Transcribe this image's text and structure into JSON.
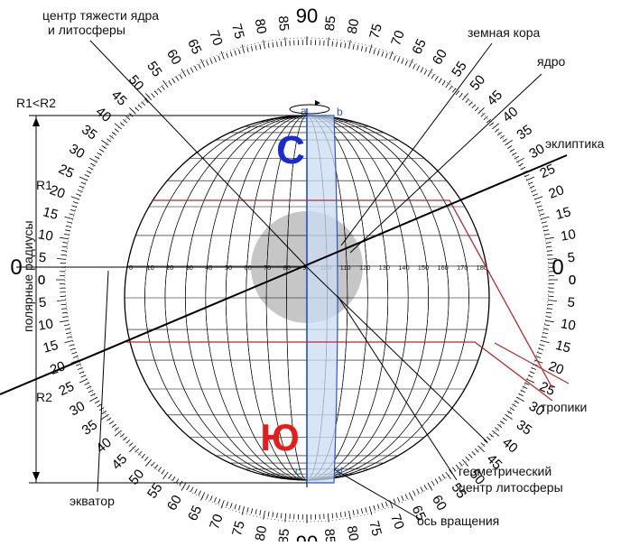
{
  "labels": {
    "core_center": [
      "центр тяжести ядра",
      "и литосферы"
    ],
    "crust": "земная кора",
    "core": "ядро",
    "ecliptic": "эклиптика",
    "tropics": "тропики",
    "geo_center": [
      "геометрический",
      "центр литосферы"
    ],
    "axis": "ось вращения",
    "equator": "экватор",
    "polar_radii": "полярные радиусы",
    "r1_lt_r2": "R1<R2",
    "r1": "R1",
    "r2": "R2",
    "north": "С",
    "south": "Ю",
    "point_a": "a",
    "point_b": "b",
    "point_c": "c",
    "point_d": "d"
  },
  "dial": {
    "side_labels": [
      "0",
      "5",
      "10",
      "15",
      "20",
      "25",
      "30",
      "35",
      "40",
      "45",
      "50",
      "55",
      "60",
      "65",
      "70",
      "75",
      "80",
      "85",
      "90"
    ],
    "pole_label": "90"
  },
  "equator_scale": [
    "0",
    "10",
    "20",
    "30",
    "40",
    "50",
    "60",
    "70",
    "80",
    "90",
    "100",
    "110",
    "120",
    "130",
    "140",
    "150",
    "160",
    "170",
    "180"
  ],
  "colors": {
    "north": "#1a2bd6",
    "south": "#e81a1a",
    "axis_fill": "#c9dcf3",
    "axis_stroke": "#2c55c4",
    "tropic": "#b8282e",
    "core": "#c6c6c6",
    "line": "#000000"
  }
}
